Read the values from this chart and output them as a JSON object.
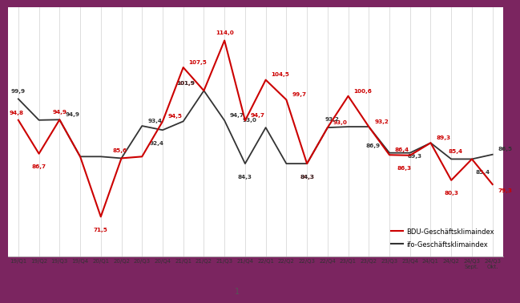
{
  "x_labels": [
    "19/Q1",
    "19/Q2",
    "19/Q3",
    "19/Q4",
    "20/Q1",
    "20/Q2",
    "20/Q3",
    "20/Q4",
    "21/Q1",
    "21/Q2",
    "21/Q3",
    "21/Q4",
    "22/Q1",
    "22/Q2",
    "22/Q3",
    "22/Q4",
    "23/Q1",
    "23/Q2",
    "23/Q3",
    "23/Q4",
    "24/Q1",
    "24/Q2",
    "24/Q3\nSept.",
    "24/Q3\nOkt."
  ],
  "bdu_values": [
    94.8,
    86.7,
    94.9,
    86.0,
    71.5,
    85.6,
    86.0,
    94.5,
    107.5,
    101.9,
    114.0,
    94.7,
    104.5,
    99.7,
    84.3,
    93.0,
    100.6,
    93.2,
    86.4,
    86.3,
    89.3,
    80.3,
    85.4,
    79.3
  ],
  "ifo_values": [
    99.9,
    94.8,
    94.9,
    86.0,
    86.0,
    85.6,
    93.4,
    92.4,
    94.5,
    101.9,
    94.7,
    84.3,
    93.0,
    84.3,
    84.3,
    93.0,
    93.2,
    93.2,
    86.9,
    86.9,
    89.3,
    85.4,
    85.4,
    86.5
  ],
  "bdu_color": "#cc0000",
  "ifo_color": "#333333",
  "background_color": "#ffffff",
  "grid_color": "#d0d0d0",
  "legend_bdu": "BDU-Geschäftsklimaindex",
  "legend_ifo": "ifo-Geschäftsklimaindex",
  "page_number": "1",
  "ylim_min": 62,
  "ylim_max": 122,
  "bdu_annotations": [
    [
      0,
      94.8,
      -8,
      5,
      "left"
    ],
    [
      1,
      86.7,
      0,
      -9,
      "center"
    ],
    [
      2,
      94.9,
      0,
      5,
      "center"
    ],
    [
      4,
      71.5,
      0,
      -9,
      "center"
    ],
    [
      5,
      85.6,
      -8,
      5,
      "left"
    ],
    [
      7,
      94.5,
      5,
      3,
      "left"
    ],
    [
      8,
      107.5,
      5,
      3,
      "left"
    ],
    [
      9,
      101.9,
      -8,
      5,
      "right"
    ],
    [
      10,
      114.0,
      0,
      5,
      "center"
    ],
    [
      11,
      94.7,
      5,
      3,
      "left"
    ],
    [
      12,
      104.5,
      5,
      3,
      "left"
    ],
    [
      13,
      99.7,
      5,
      3,
      "left"
    ],
    [
      14,
      84.3,
      0,
      -9,
      "center"
    ],
    [
      15,
      93.0,
      5,
      3,
      "left"
    ],
    [
      16,
      100.6,
      5,
      3,
      "left"
    ],
    [
      17,
      93.2,
      5,
      3,
      "left"
    ],
    [
      18,
      86.4,
      5,
      3,
      "left"
    ],
    [
      19,
      86.3,
      -5,
      -9,
      "center"
    ],
    [
      20,
      89.3,
      5,
      3,
      "left"
    ],
    [
      21,
      80.3,
      0,
      -9,
      "center"
    ],
    [
      22,
      85.4,
      -8,
      5,
      "right"
    ],
    [
      23,
      79.3,
      5,
      -3,
      "left"
    ]
  ],
  "ifo_annotations": [
    [
      0,
      99.9,
      0,
      5,
      "center"
    ],
    [
      2,
      94.9,
      5,
      3,
      "left"
    ],
    [
      6,
      93.4,
      5,
      3,
      "left"
    ],
    [
      7,
      92.4,
      -5,
      -9,
      "center"
    ],
    [
      9,
      101.9,
      -8,
      5,
      "right"
    ],
    [
      10,
      94.7,
      5,
      3,
      "left"
    ],
    [
      11,
      84.3,
      0,
      -9,
      "center"
    ],
    [
      12,
      93.0,
      -8,
      5,
      "right"
    ],
    [
      14,
      84.3,
      0,
      -9,
      "center"
    ],
    [
      16,
      93.2,
      -8,
      5,
      "right"
    ],
    [
      18,
      86.9,
      -8,
      5,
      "right"
    ],
    [
      20,
      89.3,
      -8,
      -9,
      "right"
    ],
    [
      22,
      85.4,
      3,
      -9,
      "left"
    ],
    [
      23,
      86.5,
      5,
      3,
      "left"
    ]
  ]
}
